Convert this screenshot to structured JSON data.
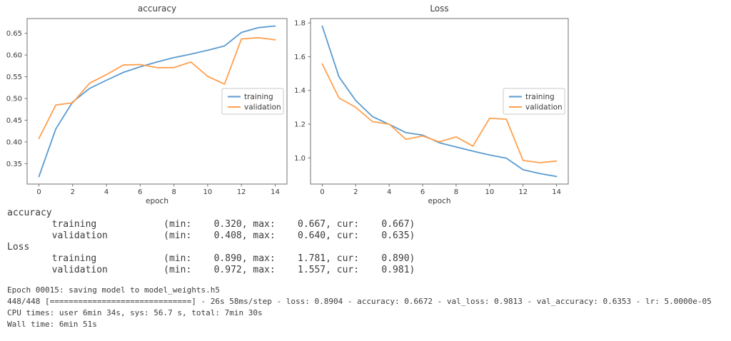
{
  "chart_data": [
    {
      "type": "line",
      "title": "accuracy",
      "xlabel": "epoch",
      "x": [
        0,
        1,
        2,
        3,
        4,
        5,
        6,
        7,
        8,
        9,
        10,
        11,
        12,
        13,
        14
      ],
      "series": [
        {
          "name": "training",
          "color": "#5b9bd0",
          "values": [
            0.32,
            0.43,
            0.492,
            0.523,
            0.542,
            0.56,
            0.573,
            0.584,
            0.594,
            0.602,
            0.611,
            0.621,
            0.652,
            0.663,
            0.667
          ]
        },
        {
          "name": "validation",
          "color": "#ffa04e",
          "values": [
            0.408,
            0.485,
            0.49,
            0.535,
            0.555,
            0.577,
            0.578,
            0.571,
            0.571,
            0.584,
            0.551,
            0.533,
            0.637,
            0.64,
            0.635
          ]
        }
      ],
      "xlim": [
        -0.7,
        14.7
      ],
      "ylim": [
        0.303,
        0.684
      ],
      "xticks": [
        "0",
        "2",
        "4",
        "6",
        "8",
        "10",
        "12",
        "14"
      ],
      "yticks": [
        "0.35",
        "0.40",
        "0.45",
        "0.50",
        "0.55",
        "0.60",
        "0.65"
      ],
      "legend": [
        "training",
        "validation"
      ],
      "legend_position": "center right",
      "grid": false
    },
    {
      "type": "line",
      "title": "Loss",
      "xlabel": "epoch",
      "x": [
        0,
        1,
        2,
        3,
        4,
        5,
        6,
        7,
        8,
        9,
        10,
        11,
        12,
        13,
        14
      ],
      "series": [
        {
          "name": "training",
          "color": "#5b9bd0",
          "values": [
            1.781,
            1.48,
            1.34,
            1.245,
            1.199,
            1.15,
            1.135,
            1.09,
            1.065,
            1.04,
            1.017,
            0.998,
            0.93,
            0.907,
            0.89
          ]
        },
        {
          "name": "validation",
          "color": "#ffa04e",
          "values": [
            1.557,
            1.355,
            1.3,
            1.215,
            1.2,
            1.11,
            1.13,
            1.095,
            1.125,
            1.07,
            1.235,
            1.23,
            0.985,
            0.972,
            0.981
          ]
        }
      ],
      "xlim": [
        -0.7,
        14.7
      ],
      "ylim": [
        0.845,
        1.826
      ],
      "xticks": [
        "0",
        "2",
        "4",
        "6",
        "8",
        "10",
        "12",
        "14"
      ],
      "yticks": [
        "1.0",
        "1.2",
        "1.4",
        "1.6",
        "1.8"
      ],
      "legend": [
        "training",
        "validation"
      ],
      "legend_position": "center right",
      "grid": false
    }
  ],
  "metrics_summary": {
    "lines": [
      "accuracy",
      "        training            (min:    0.320, max:    0.667, cur:    0.667)",
      "        validation          (min:    0.408, max:    0.640, cur:    0.635)",
      "Loss",
      "        training            (min:    0.890, max:    1.781, cur:    0.890)",
      "        validation          (min:    0.972, max:    1.557, cur:    0.981)"
    ]
  },
  "training_log": {
    "lines": [
      "Epoch 00015: saving model to model_weights.h5",
      "448/448 [==============================] - 26s 58ms/step - loss: 0.8904 - accuracy: 0.6672 - val_loss: 0.9813 - val_accuracy: 0.6353 - lr: 5.0000e-05",
      "CPU times: user 6min 34s, sys: 56.7 s, total: 7min 30s",
      "Wall time: 6min 51s"
    ]
  },
  "colors": {
    "training_line": "#5b9bd0",
    "validation_line": "#ffa04e",
    "axis": "#707070",
    "text": "#3b3b3b",
    "legend_border": "#c9c9c9",
    "background": "#ffffff"
  }
}
